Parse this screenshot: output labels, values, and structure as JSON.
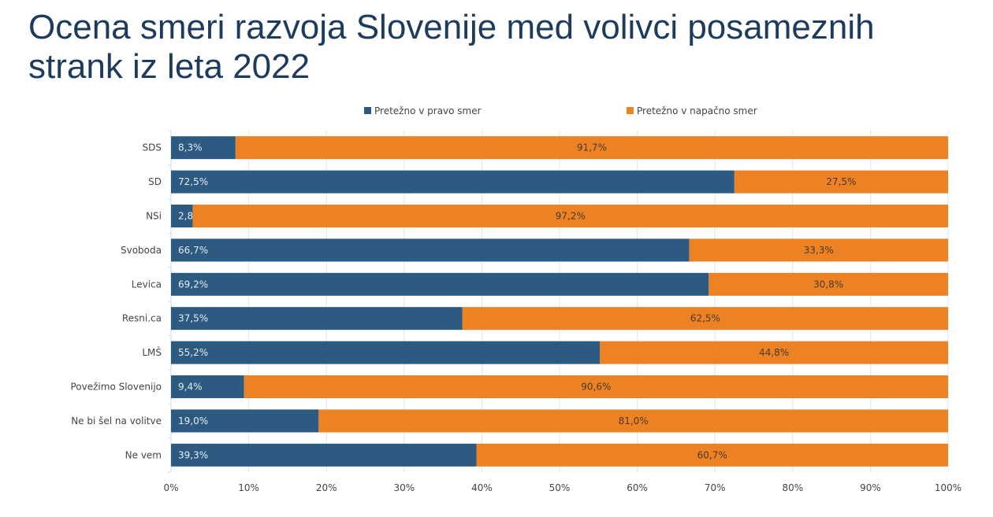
{
  "chart_data": {
    "type": "bar",
    "stacked": true,
    "orientation": "horizontal",
    "title": "Ocena smeri razvoja Slovenije med volivci posameznih strank iz leta 2022",
    "categories": [
      "SDS",
      "SD",
      "NSi",
      "Svoboda",
      "Levica",
      "Resni.ca",
      "LMŠ",
      "Povežimo Slovenijo",
      "Ne bi šel na volitve",
      "Ne vem"
    ],
    "series": [
      {
        "name": "Pretežno v pravo smer",
        "color": "#2c5a80",
        "values": [
          8.3,
          72.5,
          2.8,
          66.7,
          69.2,
          37.5,
          55.2,
          9.4,
          19.0,
          39.3
        ],
        "labels": [
          "8,3%",
          "72,5%",
          "2,8%",
          "66,7%",
          "69,2%",
          "37,5%",
          "55,2%",
          "9,4%",
          "19,0%",
          "39,3%"
        ]
      },
      {
        "name": "Pretežno v napačno smer",
        "color": "#ec8224",
        "values": [
          91.7,
          27.5,
          97.2,
          33.3,
          30.8,
          62.5,
          44.8,
          90.6,
          81.0,
          60.7
        ],
        "labels": [
          "91,7%",
          "27,5%",
          "97,2%",
          "33,3%",
          "30,8%",
          "62,5%",
          "44,8%",
          "90,6%",
          "81,0%",
          "60,7%"
        ]
      }
    ],
    "xlim": [
      0,
      100
    ],
    "xticks": [
      "0%",
      "10%",
      "20%",
      "30%",
      "40%",
      "50%",
      "60%",
      "70%",
      "80%",
      "90%",
      "100%"
    ],
    "grid": true,
    "legend": "top"
  }
}
